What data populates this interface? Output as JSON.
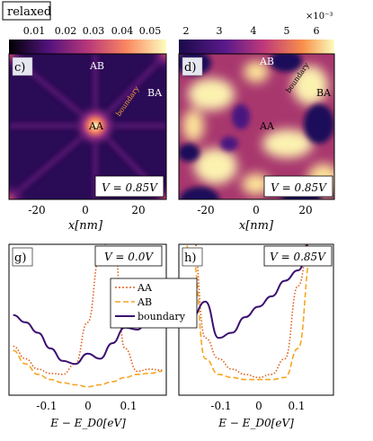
{
  "figure_label": "relaxed",
  "colorbar_left": {
    "ticks": [
      "0.01",
      "0.02",
      "0.03",
      "0.04",
      "0.05"
    ]
  },
  "colorbar_right": {
    "ticks": [
      "2",
      "3",
      "4",
      "5",
      "6"
    ],
    "exponent": "×10⁻³"
  },
  "panel_c": {
    "label": "c)",
    "annotations": {
      "ab": "AB",
      "ba": "BA",
      "aa": "AA",
      "boundary": "boundary"
    },
    "voltage": "V = 0.85V",
    "x_ticks": [
      "-20",
      "0",
      "20"
    ],
    "xlabel": "x[nm]"
  },
  "panel_d": {
    "label": "d)",
    "annotations": {
      "ab": "AB",
      "ba": "BA",
      "aa": "AA",
      "boundary": "boundary"
    },
    "voltage": "V = 0.85V",
    "x_ticks": [
      "-20",
      "0",
      "20"
    ],
    "xlabel": "x[nm]"
  },
  "panel_g": {
    "label": "g)",
    "voltage": "V = 0.0V",
    "x_ticks": [
      "-0.1",
      "0",
      "0.1"
    ],
    "xlabel": "E − E_D0[eV]"
  },
  "panel_h": {
    "label": "h)",
    "voltage": "V = 0.85V",
    "x_ticks": [
      "-0.1",
      "0",
      "0.1"
    ],
    "xlabel": "E − E_D0[eV]"
  },
  "legend": [
    "AA",
    "AB",
    "boundary"
  ],
  "colors": {
    "aa": "#e0601e",
    "ab": "#f5a623",
    "boundary": "#3b0f70"
  },
  "chart_data": [
    {
      "type": "line",
      "panel": "g",
      "x": [
        -0.18,
        -0.15,
        -0.12,
        -0.09,
        -0.06,
        -0.03,
        0.0,
        0.03,
        0.06,
        0.09,
        0.12,
        0.15,
        0.18
      ],
      "series": [
        {
          "name": "AA",
          "values": [
            0.32,
            0.2,
            0.1,
            0.06,
            0.05,
            0.15,
            0.55,
            1.2,
            1.5,
            0.3,
            0.08,
            0.1,
            0.09
          ]
        },
        {
          "name": "AB",
          "values": [
            0.28,
            0.15,
            0.05,
            0.0,
            -0.03,
            -0.05,
            -0.07,
            -0.05,
            -0.02,
            0.02,
            0.05,
            0.06,
            0.08
          ]
        },
        {
          "name": "boundary",
          "values": [
            0.62,
            0.55,
            0.45,
            0.3,
            0.18,
            0.15,
            0.25,
            0.2,
            0.35,
            0.5,
            0.48,
            0.6,
            0.62
          ]
        }
      ]
    },
    {
      "type": "line",
      "panel": "h",
      "x": [
        -0.18,
        -0.15,
        -0.12,
        -0.09,
        -0.06,
        -0.03,
        0.0,
        0.03,
        0.06,
        0.09,
        0.12,
        0.15
      ],
      "series": [
        {
          "name": "AA",
          "values": [
            1.5,
            1.45,
            0.4,
            0.2,
            0.1,
            0.05,
            0.02,
            0.05,
            0.2,
            0.9,
            1.5,
            1.5
          ]
        },
        {
          "name": "AB",
          "values": [
            1.5,
            1.2,
            0.2,
            0.05,
            0.02,
            0.0,
            0.0,
            0.0,
            0.02,
            0.3,
            1.2,
            1.5
          ]
        },
        {
          "name": "boundary",
          "values": [
            0.9,
            0.6,
            0.75,
            0.4,
            0.45,
            0.6,
            0.7,
            0.8,
            0.95,
            1.05,
            1.35,
            1.5
          ]
        }
      ]
    }
  ]
}
